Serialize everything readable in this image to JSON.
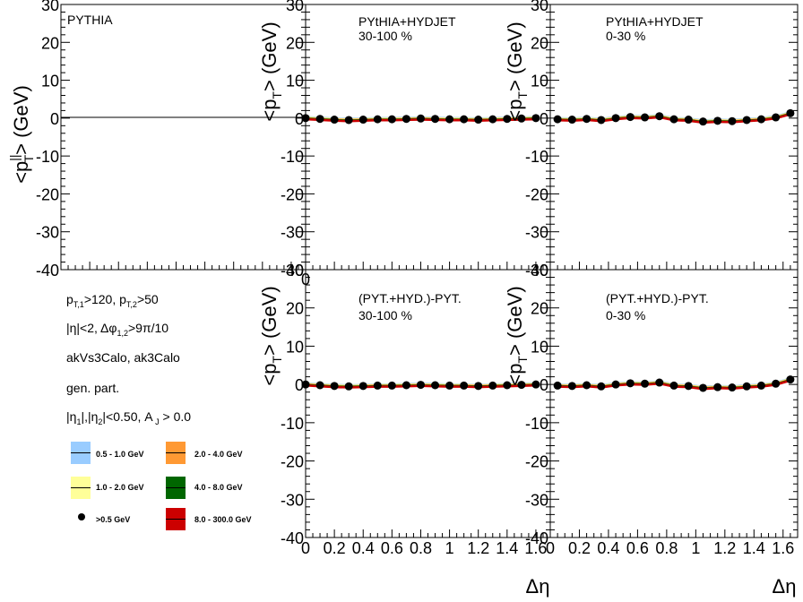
{
  "figure": {
    "xlabel": "Δη",
    "y_unit_text": "(GeV)",
    "xticks": [
      "0",
      "0.2",
      "0.4",
      "0.6",
      "0.8",
      "1",
      "1.2",
      "1.4",
      "1.6"
    ],
    "yticks": [
      "-40",
      "-30",
      "-20",
      "-10",
      "0",
      "10",
      "20",
      "30"
    ]
  },
  "panels": {
    "p1": {
      "title": "PYTHIA"
    },
    "p2": {
      "title": "PYtHIA+HYDJET",
      "subtitle": "30-100 %"
    },
    "p3": {
      "title": "PYtHIA+HYDJET",
      "subtitle": "0-30 %"
    },
    "p5": {
      "title": "(PYT.+HYD.)-PYT.",
      "subtitle": "30-100 %"
    },
    "p6": {
      "title": "(PYT.+HYD.)-PYT.",
      "subtitle": "0-30 %"
    }
  },
  "info": {
    "line3": "akVs3Calo, ak3Calo",
    "line4": "gen. part."
  },
  "legend": [
    {
      "label": "0.5 - 1.0 GeV",
      "color": "#99ccff",
      "kind": "box"
    },
    {
      "label": "2.0 - 4.0 GeV",
      "color": "#ff9933",
      "kind": "box"
    },
    {
      "label": "1.0 - 2.0 GeV",
      "color": "#ffff99",
      "kind": "box"
    },
    {
      "label": "4.0 - 8.0 GeV",
      "color": "#006600",
      "kind": "box"
    },
    {
      "label": ">0.5 GeV",
      "color": "#000000",
      "kind": "marker"
    },
    {
      "label": "8.0 - 300.0 GeV",
      "color": "#cc0000",
      "kind": "box"
    }
  ],
  "chart_data": [
    {
      "type": "scatter",
      "panel": "p2",
      "xlim": [
        0,
        1.7
      ],
      "ylim": [
        -40,
        30
      ],
      "x": [
        0.0,
        0.1,
        0.2,
        0.3,
        0.4,
        0.5,
        0.6,
        0.7,
        0.8,
        0.9,
        1.0,
        1.1,
        1.2,
        1.3,
        1.4,
        1.5,
        1.6
      ],
      "y": [
        0.0,
        -0.2,
        -0.4,
        -0.5,
        -0.4,
        -0.3,
        -0.3,
        -0.2,
        -0.1,
        -0.2,
        -0.3,
        -0.3,
        -0.4,
        -0.3,
        -0.2,
        -0.1,
        0.0
      ],
      "series_name": ">0.5 GeV"
    },
    {
      "type": "scatter",
      "panel": "p3",
      "xlim": [
        0,
        1.7
      ],
      "ylim": [
        -40,
        30
      ],
      "x": [
        0.05,
        0.15,
        0.25,
        0.35,
        0.45,
        0.55,
        0.65,
        0.75,
        0.85,
        0.95,
        1.05,
        1.15,
        1.25,
        1.35,
        1.45,
        1.55,
        1.65
      ],
      "y": [
        -0.3,
        -0.4,
        -0.2,
        -0.5,
        0.0,
        0.3,
        0.2,
        0.5,
        -0.3,
        -0.4,
        -0.9,
        -0.7,
        -0.8,
        -0.5,
        -0.3,
        0.2,
        1.3
      ],
      "series_name": ">0.5 GeV"
    },
    {
      "type": "scatter",
      "panel": "p5",
      "xlim": [
        0,
        1.7
      ],
      "ylim": [
        -40,
        30
      ],
      "x": [
        0.0,
        0.1,
        0.2,
        0.3,
        0.4,
        0.5,
        0.6,
        0.7,
        0.8,
        0.9,
        1.0,
        1.1,
        1.2,
        1.3,
        1.4,
        1.5,
        1.6
      ],
      "y": [
        0.0,
        -0.2,
        -0.4,
        -0.5,
        -0.4,
        -0.3,
        -0.3,
        -0.2,
        -0.1,
        -0.2,
        -0.3,
        -0.3,
        -0.4,
        -0.3,
        -0.2,
        -0.1,
        0.0
      ],
      "series_name": ">0.5 GeV"
    },
    {
      "type": "scatter",
      "panel": "p6",
      "xlim": [
        0,
        1.7
      ],
      "ylim": [
        -40,
        30
      ],
      "x": [
        0.05,
        0.15,
        0.25,
        0.35,
        0.45,
        0.55,
        0.65,
        0.75,
        0.85,
        0.95,
        1.05,
        1.15,
        1.25,
        1.35,
        1.45,
        1.55,
        1.65
      ],
      "y": [
        -0.3,
        -0.4,
        -0.2,
        -0.5,
        0.0,
        0.3,
        0.2,
        0.5,
        -0.3,
        -0.4,
        -0.9,
        -0.7,
        -0.8,
        -0.5,
        -0.3,
        0.2,
        1.3
      ],
      "series_name": ">0.5 GeV"
    }
  ]
}
